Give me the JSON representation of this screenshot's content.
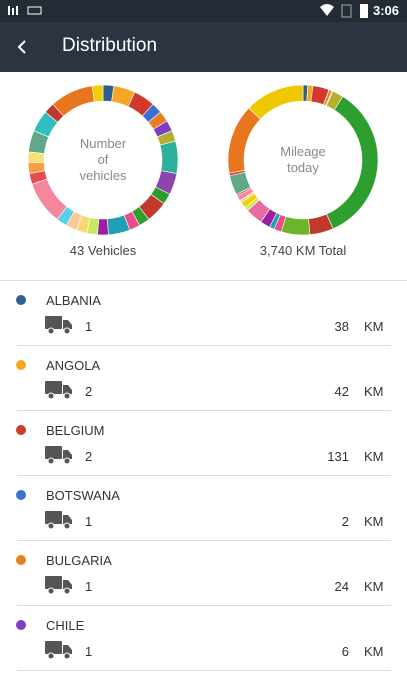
{
  "status_bar": {
    "time": "3:06"
  },
  "header": {
    "title": "Distribution"
  },
  "charts": [
    {
      "type": "donut",
      "center_label": [
        "Number",
        "of",
        "vehicles"
      ],
      "caption": "43 Vehicles",
      "segments": [
        {
          "color": "#2f5f8f",
          "value": 1
        },
        {
          "color": "#f5a623",
          "value": 2
        },
        {
          "color": "#d0392b",
          "value": 2
        },
        {
          "color": "#3b6fd4",
          "value": 1
        },
        {
          "color": "#e67e22",
          "value": 1
        },
        {
          "color": "#7b3fc4",
          "value": 1
        },
        {
          "color": "#b5b02a",
          "value": 1
        },
        {
          "color": "#2ab09b",
          "value": 3
        },
        {
          "color": "#8e44ad",
          "value": 2
        },
        {
          "color": "#27a02a",
          "value": 1
        },
        {
          "color": "#c0392b",
          "value": 2
        },
        {
          "color": "#2e9e2e",
          "value": 1
        },
        {
          "color": "#e84c8a",
          "value": 1
        },
        {
          "color": "#1fa0b5",
          "value": 2
        },
        {
          "color": "#9b1fa0",
          "value": 1
        },
        {
          "color": "#c6e85a",
          "value": 1
        },
        {
          "color": "#f7d774",
          "value": 1
        },
        {
          "color": "#f9c89b",
          "value": 1
        },
        {
          "color": "#5ad0e8",
          "value": 1
        },
        {
          "color": "#f4879b",
          "value": 4
        },
        {
          "color": "#e94c4c",
          "value": 1
        },
        {
          "color": "#f59e42",
          "value": 1
        },
        {
          "color": "#f7e27a",
          "value": 1
        },
        {
          "color": "#5fa88a",
          "value": 2
        },
        {
          "color": "#2fbfbf",
          "value": 2
        },
        {
          "color": "#c0392b",
          "value": 1
        },
        {
          "color": "#e8761e",
          "value": 4
        },
        {
          "color": "#f0d000",
          "value": 1
        }
      ]
    },
    {
      "type": "donut",
      "center_label": [
        "Mileage",
        "today"
      ],
      "caption": "3,740 KM Total",
      "segments": [
        {
          "color": "#2f5f8f",
          "value": 38
        },
        {
          "color": "#f5a623",
          "value": 42
        },
        {
          "color": "#d0392b",
          "value": 131
        },
        {
          "color": "#3b6fd4",
          "value": 2
        },
        {
          "color": "#e67e22",
          "value": 24
        },
        {
          "color": "#7b3fc4",
          "value": 6
        },
        {
          "color": "#b5b02a",
          "value": 90
        },
        {
          "color": "#2e9e2e",
          "value": 1292
        },
        {
          "color": "#c0392b",
          "value": 190
        },
        {
          "color": "#6cb52a",
          "value": 230
        },
        {
          "color": "#e84c8a",
          "value": 60
        },
        {
          "color": "#1fa0b5",
          "value": 40
        },
        {
          "color": "#9b1fa0",
          "value": 80
        },
        {
          "color": "#e86ca0",
          "value": 140
        },
        {
          "color": "#c6e85a",
          "value": 30
        },
        {
          "color": "#f0d000",
          "value": 50
        },
        {
          "color": "#f9c89b",
          "value": 20
        },
        {
          "color": "#f4879b",
          "value": 40
        },
        {
          "color": "#e94c4c",
          "value": 15
        },
        {
          "color": "#5fa88a",
          "value": 160
        },
        {
          "color": "#d0392b",
          "value": 20
        },
        {
          "color": "#e8761e",
          "value": 560
        },
        {
          "color": "#f0c800",
          "value": 480
        }
      ]
    }
  ],
  "list": [
    {
      "name": "ALBANIA",
      "color": "#2f5f8f",
      "vehicles": 1,
      "km": 38,
      "unit": "KM"
    },
    {
      "name": "ANGOLA",
      "color": "#f5a623",
      "vehicles": 2,
      "km": 42,
      "unit": "KM"
    },
    {
      "name": "BELGIUM",
      "color": "#d0392b",
      "vehicles": 2,
      "km": 131,
      "unit": "KM"
    },
    {
      "name": "BOTSWANA",
      "color": "#3b6fd4",
      "vehicles": 1,
      "km": 2,
      "unit": "KM"
    },
    {
      "name": "BULGARIA",
      "color": "#e67e22",
      "vehicles": 1,
      "km": 24,
      "unit": "KM"
    },
    {
      "name": "CHILE",
      "color": "#7b3fc4",
      "vehicles": 1,
      "km": 6,
      "unit": "KM"
    }
  ]
}
